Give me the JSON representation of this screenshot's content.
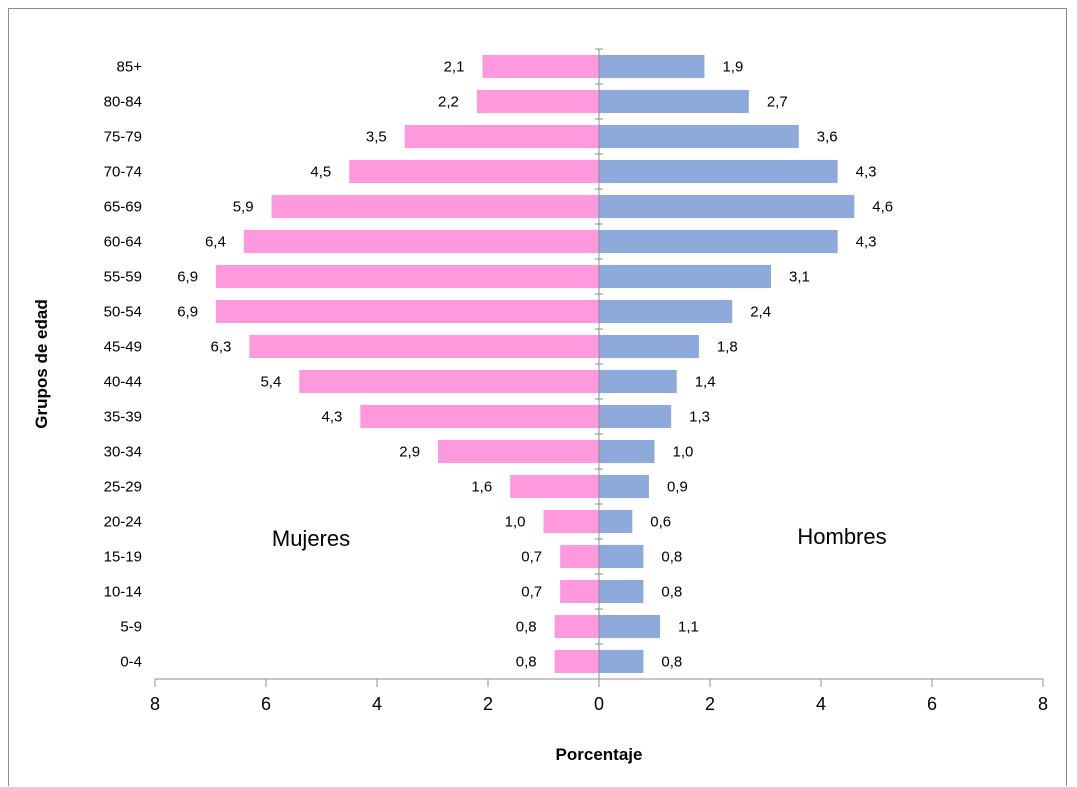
{
  "chart_data": {
    "type": "bar",
    "orientation": "horizontal",
    "categories": [
      "0-4",
      "5-9",
      "10-14",
      "15-19",
      "20-24",
      "25-29",
      "30-34",
      "35-39",
      "40-44",
      "45-49",
      "50-54",
      "55-59",
      "60-64",
      "65-69",
      "70-74",
      "75-79",
      "80-84",
      "85+"
    ],
    "series": [
      {
        "name": "Mujeres",
        "color": "#ff99dd",
        "side": "left",
        "values": [
          0.8,
          0.8,
          0.7,
          0.7,
          1.0,
          1.6,
          2.9,
          4.3,
          5.4,
          6.3,
          6.9,
          6.9,
          6.4,
          5.9,
          4.5,
          3.5,
          2.2,
          2.1
        ],
        "labels": [
          "0,8",
          "0,8",
          "0,7",
          "0,7",
          "1,0",
          "1,6",
          "2,9",
          "4,3",
          "5,4",
          "6,3",
          "6,9",
          "6,9",
          "6,4",
          "5,9",
          "4,5",
          "3,5",
          "2,2",
          "2,1"
        ]
      },
      {
        "name": "Hombres",
        "color": "#8eaadb",
        "side": "right",
        "values": [
          0.8,
          1.1,
          0.8,
          0.8,
          0.6,
          0.9,
          1.0,
          1.3,
          1.4,
          1.8,
          2.4,
          3.1,
          4.3,
          4.6,
          4.3,
          3.6,
          2.7,
          1.9
        ],
        "labels": [
          "0,8",
          "1,1",
          "0,8",
          "0,8",
          "0,6",
          "0,9",
          "1,0",
          "1,3",
          "1,4",
          "1,8",
          "2,4",
          "3,1",
          "4,3",
          "4,6",
          "4,3",
          "3,6",
          "2,7",
          "1,9"
        ]
      }
    ],
    "xticks": [
      "8",
      "6",
      "4",
      "2",
      "0",
      "2",
      "4",
      "6",
      "8"
    ],
    "xlim": [
      -8,
      8
    ],
    "xlabel": "Porcentaje",
    "ylabel": "Grupos de edad",
    "annotations": [
      "Mujeres",
      "Hombres"
    ],
    "grid": false,
    "legend": "none"
  }
}
